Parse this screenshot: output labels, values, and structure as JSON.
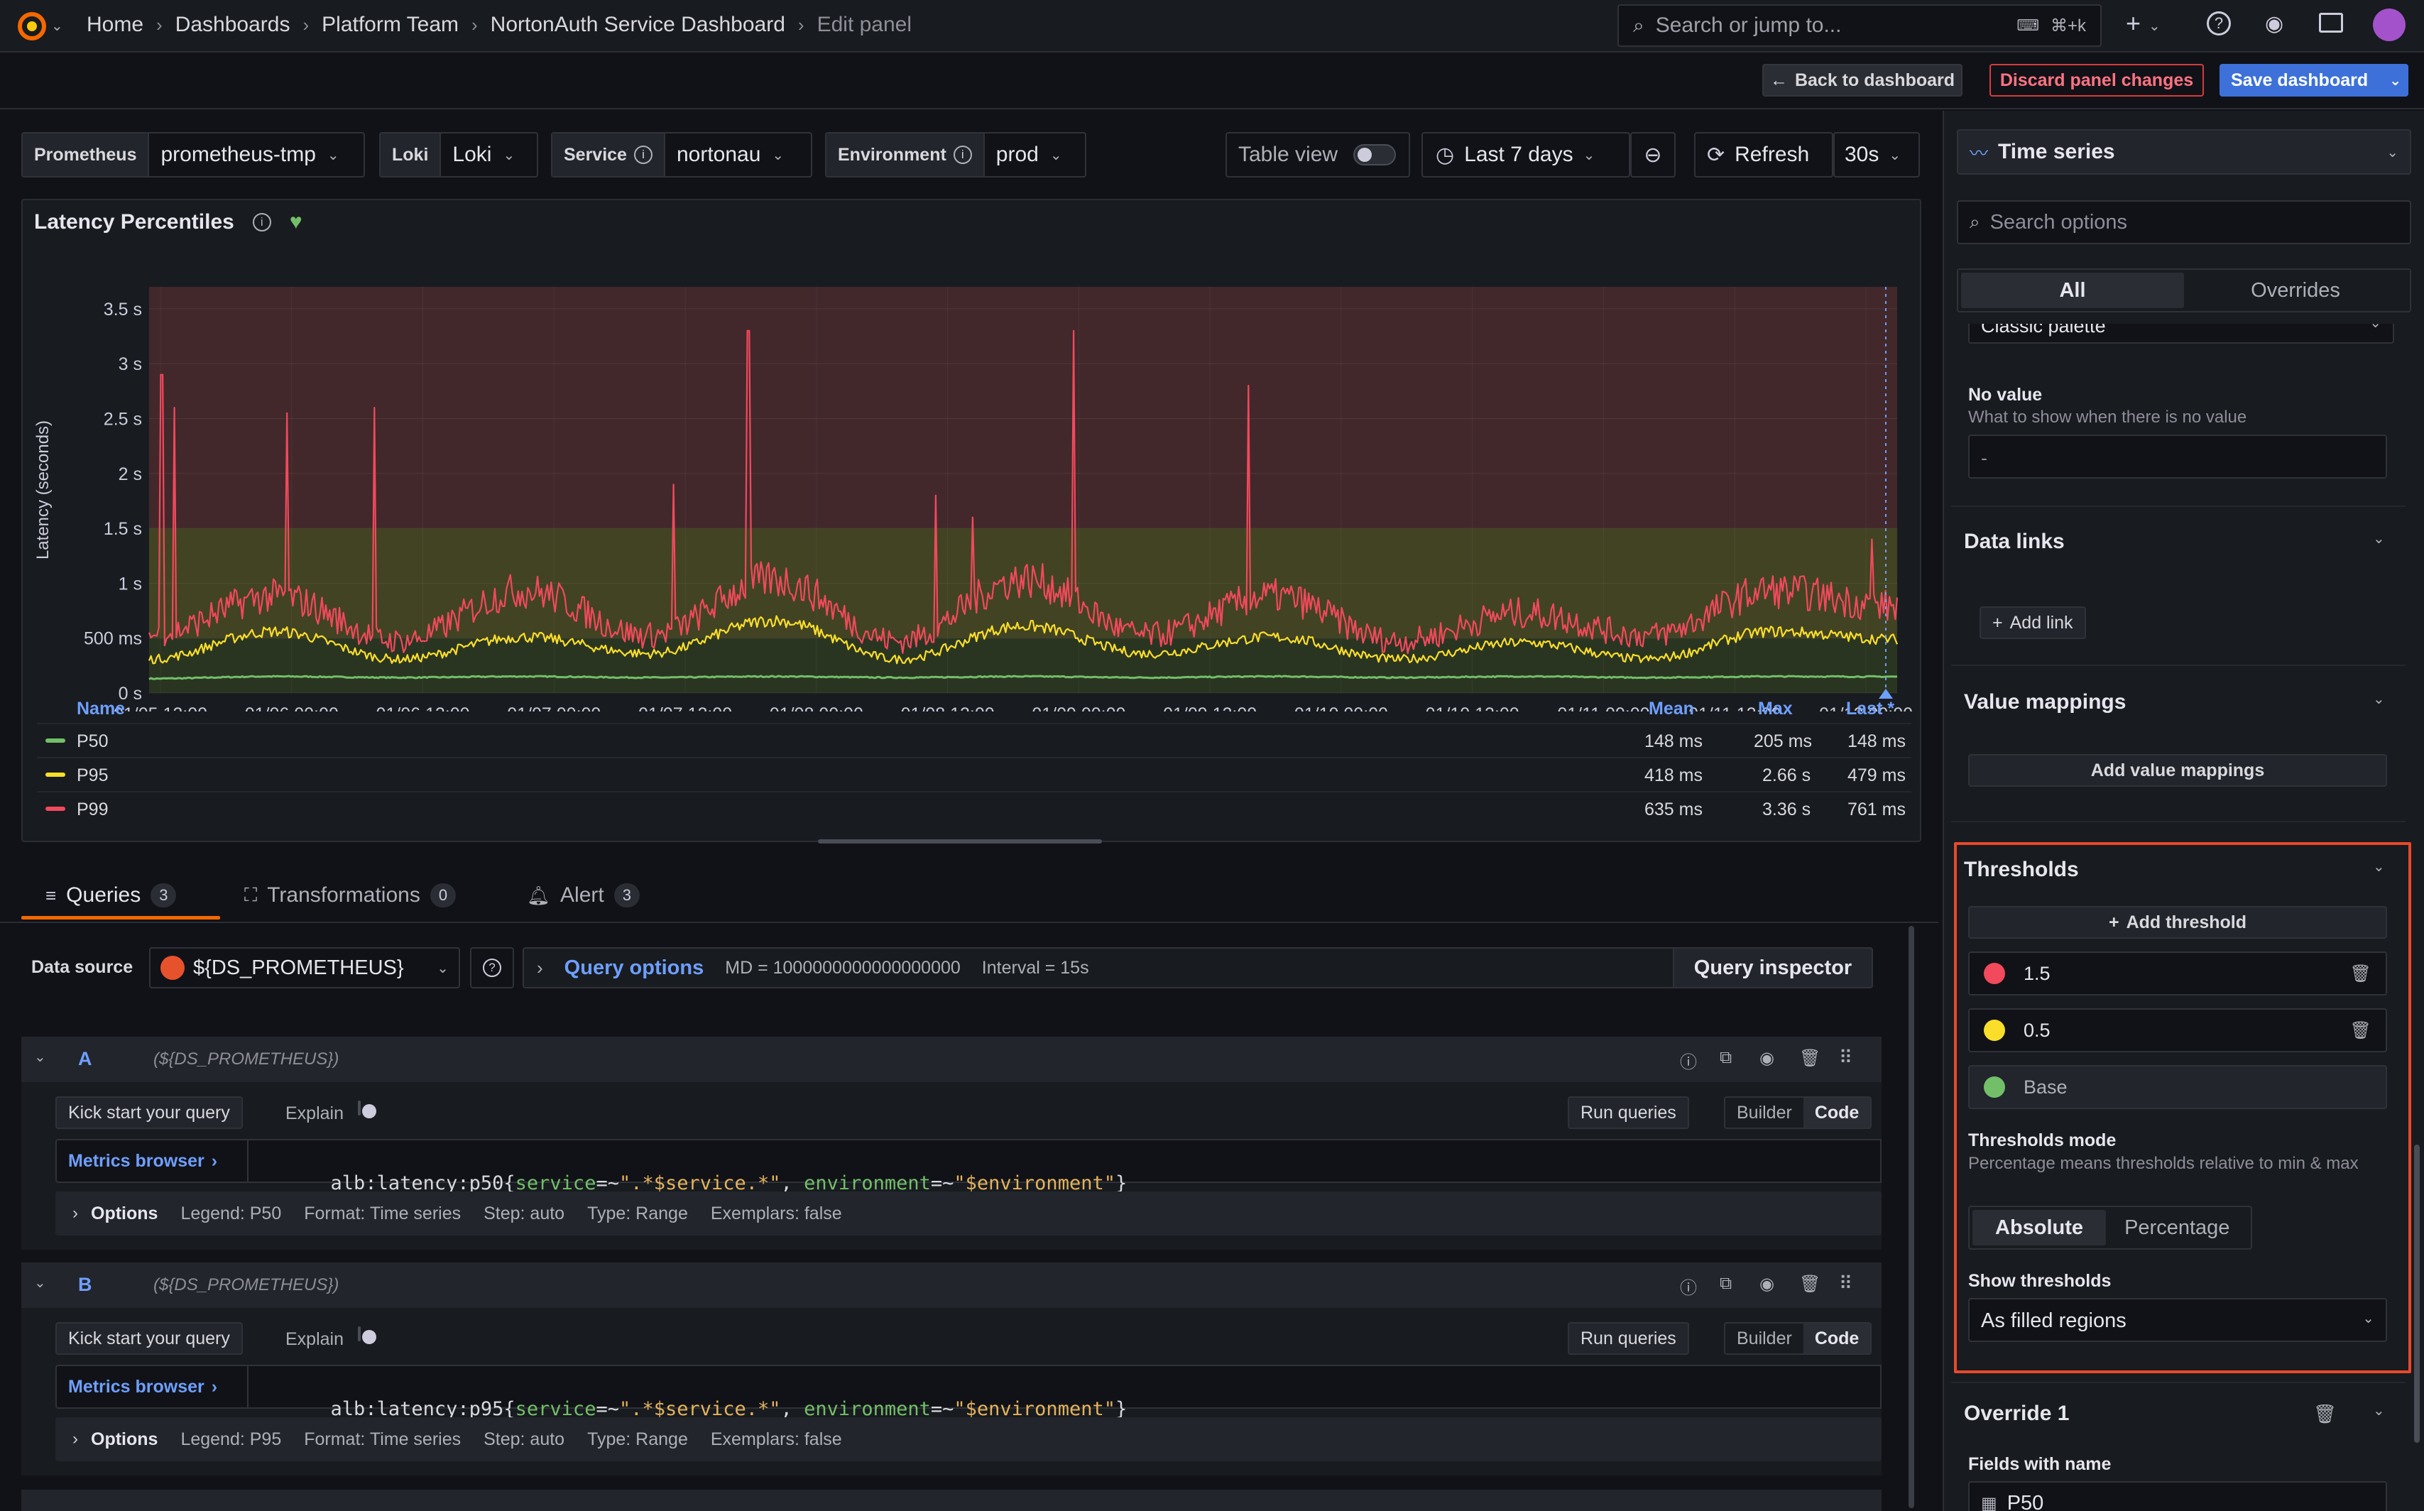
{
  "breadcrumbs": [
    "Home",
    "Dashboards",
    "Platform Team",
    "NortonAuth Service Dashboard",
    "Edit panel"
  ],
  "search": {
    "placeholder": "Search or jump to...",
    "shortcut": "⌘+k"
  },
  "toolbar": {
    "back_label": "Back to dashboard",
    "discard_label": "Discard panel changes",
    "save_label": "Save dashboard"
  },
  "variables": [
    {
      "label": "Prometheus",
      "value": "prometheus-tmp"
    },
    {
      "label": "Loki",
      "value": "Loki"
    },
    {
      "label": "Service",
      "value": "nortonau"
    },
    {
      "label": "Environment",
      "value": "prod"
    }
  ],
  "controls": {
    "table_view": "Table view",
    "time_range": "Last 7 days",
    "refresh": "Refresh",
    "interval": "30s"
  },
  "panel": {
    "title": "Latency Percentiles"
  },
  "chart_data": {
    "type": "line",
    "ylabel": "Latency (seconds)",
    "y_ticks": [
      "0 s",
      "500 ms",
      "1 s",
      "1.5 s",
      "2 s",
      "2.5 s",
      "3 s",
      "3.5 s"
    ],
    "ylim": [
      0,
      3.7
    ],
    "x_ticks": [
      "01/05 12:00",
      "01/06 00:00",
      "01/06 12:00",
      "01/07 00:00",
      "01/07 12:00",
      "01/08 00:00",
      "01/08 12:00",
      "01/09 00:00",
      "01/09 12:00",
      "01/10 00:00",
      "01/10 12:00",
      "01/11 00:00",
      "01/11 12:00",
      "01/12 00:00"
    ],
    "thresholds": [
      {
        "value": 0.5,
        "color": "#6e6b2a"
      },
      {
        "value": 1.5,
        "color": "#4a2a2e"
      }
    ],
    "series": [
      {
        "name": "P50",
        "color": "#73bf69",
        "x": [
          0,
          0.5,
          1,
          1.5,
          2,
          2.5,
          3,
          3.5,
          4,
          4.5,
          5,
          5.5,
          6,
          6.5,
          7
        ],
        "values": [
          0.13,
          0.15,
          0.14,
          0.15,
          0.14,
          0.15,
          0.14,
          0.15,
          0.14,
          0.15,
          0.14,
          0.15,
          0.14,
          0.15,
          0.148
        ]
      },
      {
        "name": "P95",
        "color": "#fade2a",
        "x": [
          0,
          0.5,
          1,
          1.5,
          2,
          2.5,
          3,
          3.5,
          4,
          4.5,
          5,
          5.5,
          6,
          6.5,
          7
        ],
        "values": [
          0.3,
          0.55,
          0.3,
          0.5,
          0.35,
          0.65,
          0.3,
          0.6,
          0.35,
          0.5,
          0.3,
          0.45,
          0.3,
          0.55,
          0.48
        ]
      },
      {
        "name": "P99",
        "color": "#f2495c",
        "x": [
          0,
          0.5,
          1,
          1.5,
          2,
          2.5,
          3,
          3.5,
          4,
          4.5,
          5,
          5.5,
          6,
          6.5,
          7
        ],
        "values": [
          0.5,
          0.85,
          0.45,
          0.9,
          0.5,
          1.0,
          0.45,
          1.0,
          0.5,
          0.85,
          0.45,
          0.7,
          0.5,
          0.9,
          0.76
        ]
      }
    ],
    "spikes": [
      {
        "x": 0.05,
        "v": 2.9
      },
      {
        "x": 0.1,
        "v": 2.6
      },
      {
        "x": 0.55,
        "v": 2.55
      },
      {
        "x": 0.9,
        "v": 2.6
      },
      {
        "x": 2.1,
        "v": 1.9
      },
      {
        "x": 2.4,
        "v": 3.3
      },
      {
        "x": 3.15,
        "v": 1.8
      },
      {
        "x": 3.3,
        "v": 1.6
      },
      {
        "x": 3.7,
        "v": 3.3
      },
      {
        "x": 4.4,
        "v": 2.8
      },
      {
        "x": 6.9,
        "v": 1.4
      }
    ],
    "legend_headers": {
      "name": "Name",
      "mean": "Mean",
      "max": "Max",
      "last": "Last *"
    },
    "legend_rows": [
      {
        "name": "P50",
        "mean": "148 ms",
        "max": "205 ms",
        "last": "148 ms"
      },
      {
        "name": "P95",
        "mean": "418 ms",
        "max": "2.66 s",
        "last": "479 ms"
      },
      {
        "name": "P99",
        "mean": "635 ms",
        "max": "3.36 s",
        "last": "761 ms"
      }
    ]
  },
  "query_tabs": [
    {
      "label": "Queries",
      "count": "3"
    },
    {
      "label": "Transformations",
      "count": "0"
    },
    {
      "label": "Alert",
      "count": "3"
    }
  ],
  "query_bar": {
    "datasource_label": "Data source",
    "datasource_value": "${DS_PROMETHEUS}",
    "options_label": "Query options",
    "md": "MD = 1000000000000000000",
    "interval": "Interval = 15s",
    "inspector": "Query inspector"
  },
  "queries": [
    {
      "ref": "A",
      "ds": "(${DS_PROMETHEUS})",
      "kickstart": "Kick start your query",
      "explain": "Explain",
      "run": "Run queries",
      "builder": "Builder",
      "code": "Code",
      "metrics_browser": "Metrics browser",
      "expr_metric": "alb:latency:p50",
      "expr_k1": "service",
      "expr_s1": "\".*$service.*\"",
      "expr_k2": "environment",
      "expr_s2": "\"$environment\"",
      "options": "Options",
      "legend": "Legend: P50",
      "format": "Format: Time series",
      "step": "Step: auto",
      "type": "Type: Range",
      "exemplars": "Exemplars: false"
    },
    {
      "ref": "B",
      "ds": "(${DS_PROMETHEUS})",
      "kickstart": "Kick start your query",
      "explain": "Explain",
      "run": "Run queries",
      "builder": "Builder",
      "code": "Code",
      "metrics_browser": "Metrics browser",
      "expr_metric": "alb:latency:p95",
      "expr_k1": "service",
      "expr_s1": "\".*$service.*\"",
      "expr_k2": "environment",
      "expr_s2": "\"$environment\"",
      "options": "Options",
      "legend": "Legend: P95",
      "format": "Format: Time series",
      "step": "Step: auto",
      "type": "Type: Range",
      "exemplars": "Exemplars: false"
    }
  ],
  "options_pane": {
    "viz": "Time series",
    "search_placeholder": "Search options",
    "tab_all": "All",
    "tab_overrides": "Overrides",
    "palette": "Classic palette",
    "no_value_title": "No value",
    "no_value_hint": "What to show when there is no value",
    "no_value_placeholder": "-",
    "data_links": "Data links",
    "add_link": "Add link",
    "value_mappings": "Value mappings",
    "add_value_mappings": "Add value mappings",
    "thresholds": "Thresholds",
    "add_threshold": "Add threshold",
    "threshold_steps": [
      {
        "value": "1.5",
        "color": "#f2495c"
      },
      {
        "value": "0.5",
        "color": "#fade2a"
      },
      {
        "value": "Base",
        "color": "#73bf69"
      }
    ],
    "mode_title": "Thresholds mode",
    "mode_hint": "Percentage means thresholds relative to min & max",
    "mode_absolute": "Absolute",
    "mode_percentage": "Percentage",
    "show_title": "Show thresholds",
    "show_value": "As filled regions",
    "override_title": "Override 1",
    "override_field_label": "Fields with name",
    "override_field_value": "P50"
  },
  "colors": {
    "accent": "#3d71d9",
    "highlight": "#e8492b"
  }
}
